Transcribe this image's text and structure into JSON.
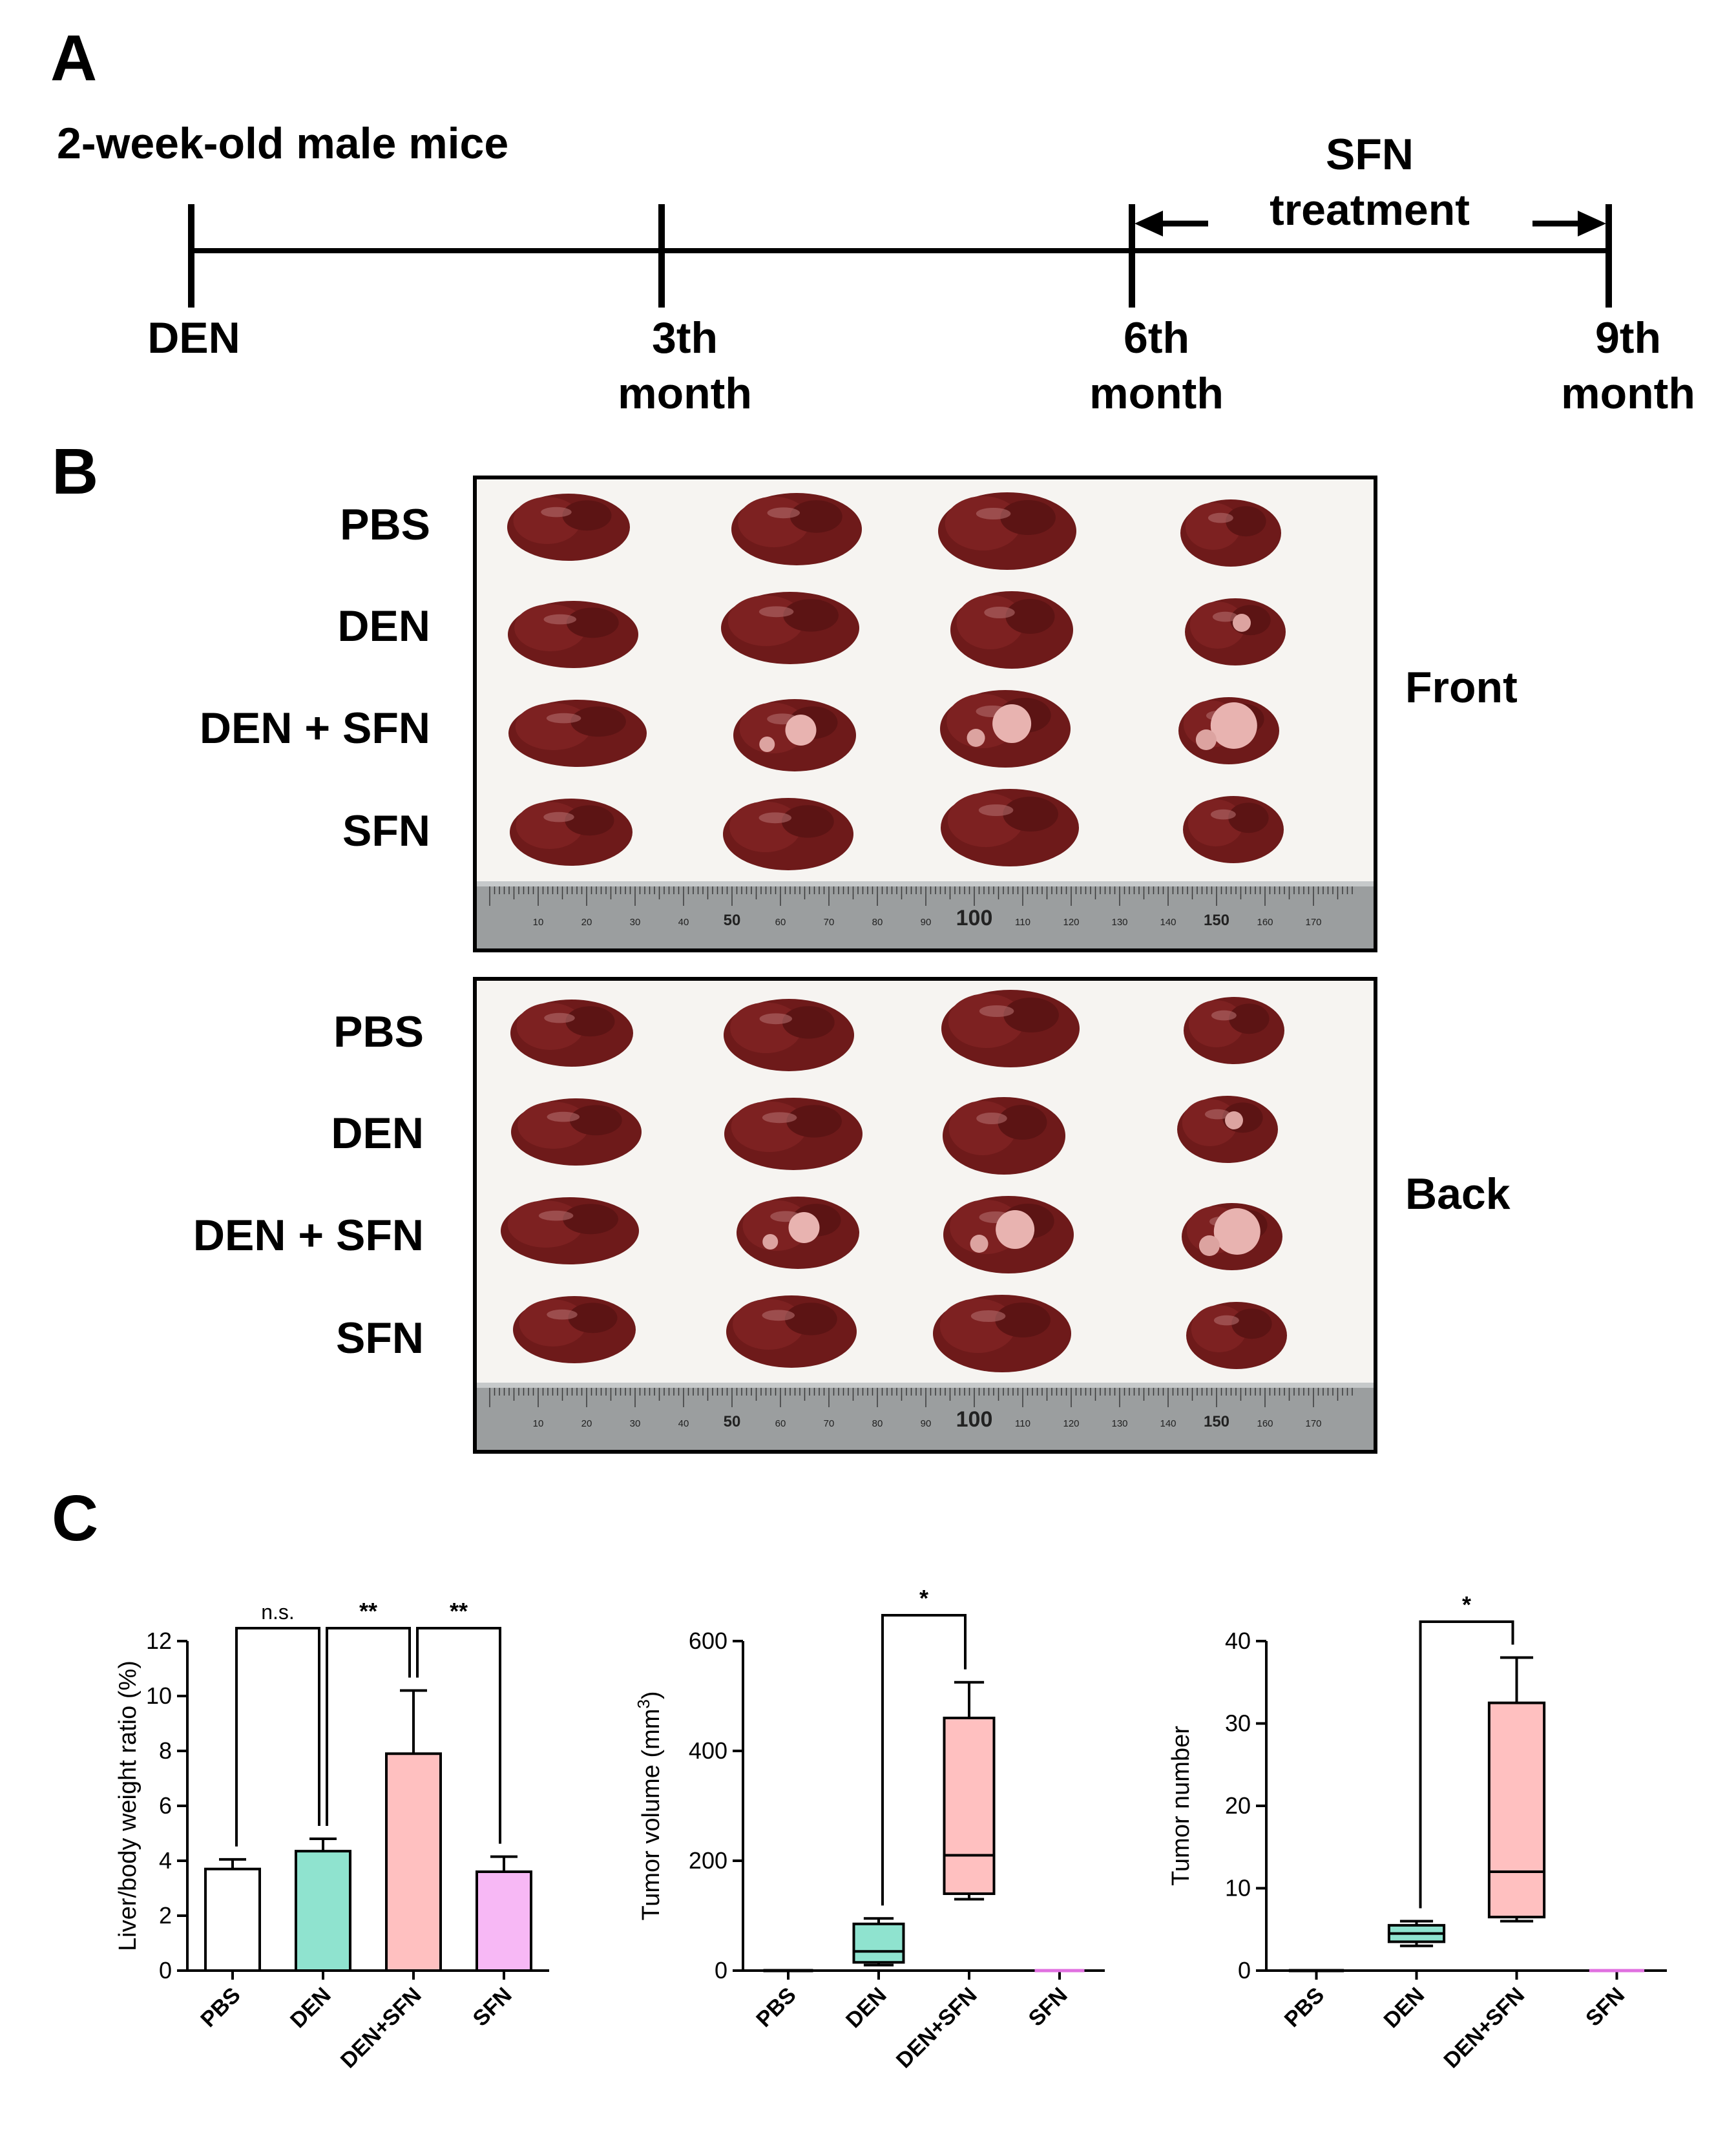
{
  "panel_a": {
    "letter": "A",
    "subject": "2-week-old male mice",
    "treatment_line1": "SFN",
    "treatment_line2": "treatment",
    "ticks": [
      {
        "line1": "DEN",
        "line2": ""
      },
      {
        "line1": "3th",
        "line2": "month"
      },
      {
        "line1": "6th",
        "line2": "month"
      },
      {
        "line1": "9th",
        "line2": "month"
      }
    ]
  },
  "panel_b": {
    "letter": "B",
    "photos": [
      {
        "view": "Front",
        "rows": [
          "PBS",
          "DEN",
          "DEN + SFN",
          "SFN"
        ]
      },
      {
        "view": "Back",
        "rows": [
          "PBS",
          "DEN",
          "DEN + SFN",
          "SFN"
        ]
      }
    ],
    "ruler_labels": [
      "10",
      "20",
      "30",
      "40",
      "50",
      "60",
      "70",
      "80",
      "90",
      "100",
      "110",
      "120",
      "130",
      "140",
      "150",
      "160",
      "170"
    ]
  },
  "panel_c": {
    "letter": "C"
  },
  "chart_data": [
    {
      "type": "bar",
      "ylabel": "Liver/body weight ratio (%)",
      "categories": [
        "PBS",
        "DEN",
        "DEN+SFN",
        "SFN"
      ],
      "values": [
        3.7,
        4.35,
        7.9,
        3.6
      ],
      "errors": [
        0.35,
        0.45,
        2.3,
        0.55
      ],
      "colors": [
        "#ffffff",
        "#8fe3cf",
        "#ffc0c0",
        "#f7b8f5"
      ],
      "ylim": [
        0,
        12
      ],
      "yticks": [
        0,
        2,
        4,
        6,
        8,
        10,
        12
      ],
      "comparisons": [
        {
          "from": 0,
          "to": 1,
          "label": "n.s."
        },
        {
          "from": 1,
          "to": 2,
          "label": "**"
        },
        {
          "from": 2,
          "to": 3,
          "label": "**"
        }
      ]
    },
    {
      "type": "box",
      "ylabel": "Tumor volume (mm",
      "ylabel_sup": "3",
      "ylabel_end": ")",
      "categories": [
        "PBS",
        "DEN",
        "DEN+SFN",
        "SFN"
      ],
      "boxes": [
        {
          "min": 0,
          "q1": 0,
          "median": 0,
          "q3": 0,
          "max": 0
        },
        {
          "min": 10,
          "q1": 15,
          "median": 35,
          "q3": 85,
          "max": 95
        },
        {
          "min": 130,
          "q1": 140,
          "median": 210,
          "q3": 460,
          "max": 525
        },
        {
          "min": 0,
          "q1": 0,
          "median": 0,
          "q3": 0,
          "max": 0
        }
      ],
      "colors": [
        "#000000",
        "#8fe3cf",
        "#ffc0c0",
        "#e070e0"
      ],
      "ylim": [
        0,
        600
      ],
      "yticks": [
        0,
        200,
        400,
        600
      ],
      "comparisons": [
        {
          "from": 1,
          "to": 2,
          "label": "*"
        }
      ]
    },
    {
      "type": "box",
      "ylabel": "Tumor number",
      "categories": [
        "PBS",
        "DEN",
        "DEN+SFN",
        "SFN"
      ],
      "boxes": [
        {
          "min": 0,
          "q1": 0,
          "median": 0,
          "q3": 0,
          "max": 0
        },
        {
          "min": 3,
          "q1": 3.5,
          "median": 4.5,
          "q3": 5.5,
          "max": 6
        },
        {
          "min": 6,
          "q1": 6.5,
          "median": 12,
          "q3": 32.5,
          "max": 38
        },
        {
          "min": 0,
          "q1": 0,
          "median": 0,
          "q3": 0,
          "max": 0
        }
      ],
      "colors": [
        "#000000",
        "#8fe3cf",
        "#ffc0c0",
        "#e070e0"
      ],
      "ylim": [
        0,
        40
      ],
      "yticks": [
        0,
        10,
        20,
        30,
        40
      ],
      "comparisons": [
        {
          "from": 1,
          "to": 2,
          "label": "*"
        }
      ]
    }
  ]
}
